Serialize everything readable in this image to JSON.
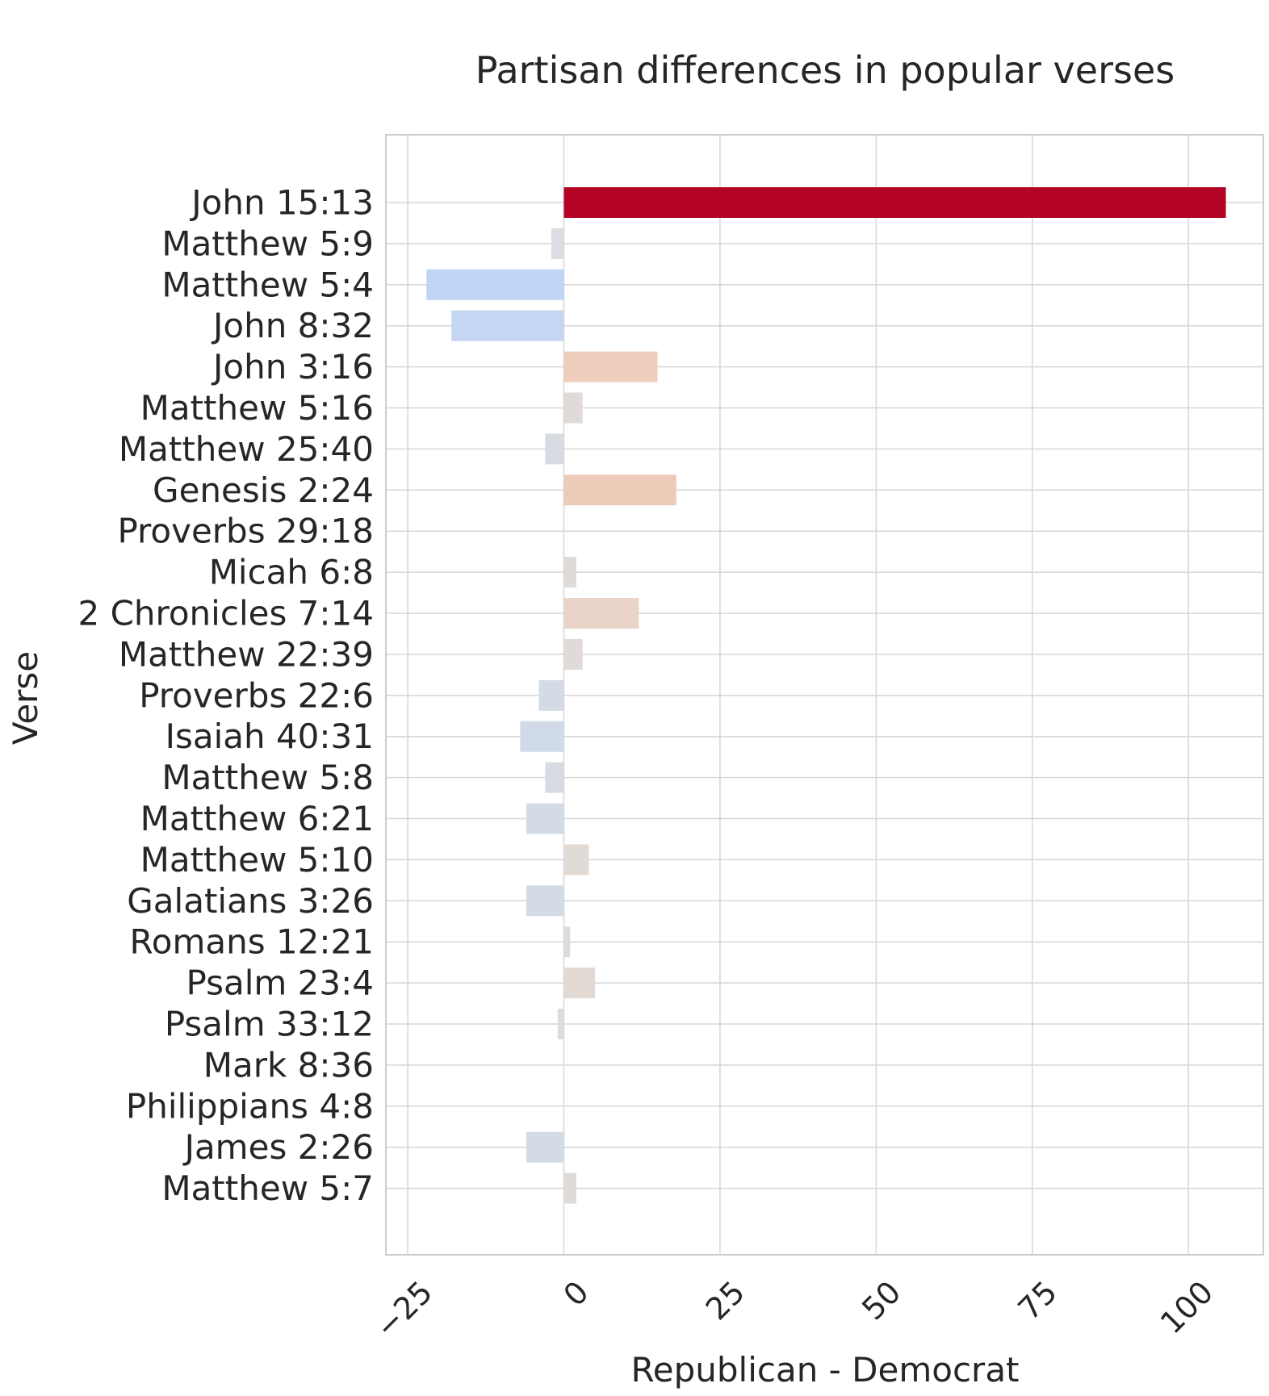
{
  "chart_data": {
    "type": "bar",
    "orientation": "horizontal",
    "title": "Partisan differences in popular verses",
    "xlabel": "Republican - Democrat",
    "ylabel": "Verse",
    "xlim": [
      -28.5,
      112
    ],
    "xticks": [
      -25,
      0,
      25,
      50,
      75,
      100
    ],
    "xtick_labels": [
      "−25",
      "0",
      "25",
      "50",
      "75",
      "100"
    ],
    "grid": true,
    "colormap": "coolwarm",
    "categories": [
      "John 15:13",
      "Matthew 5:9",
      "Matthew 5:4",
      "John 8:32",
      "John 3:16",
      "Matthew 5:16",
      "Matthew 25:40",
      "Genesis 2:24",
      "Proverbs 29:18",
      "Micah 6:8",
      "2 Chronicles 7:14",
      "Matthew 22:39",
      "Proverbs 22:6",
      "Isaiah 40:31",
      "Matthew 5:8",
      "Matthew 6:21",
      "Matthew 5:10",
      "Galatians 3:26",
      "Romans 12:21",
      "Psalm 23:4",
      "Psalm 33:12",
      "Mark 8:36",
      "Philippians 4:8",
      "James 2:26",
      "Matthew 5:7"
    ],
    "values": [
      106,
      -2,
      -22,
      -18,
      15,
      3,
      -3,
      18,
      0,
      2,
      12,
      3,
      -4,
      -7,
      -3,
      -6,
      4,
      -6,
      1,
      5,
      -1,
      0,
      0,
      -6,
      2
    ],
    "colors": [
      "#b40426",
      "#dcdde2",
      "#c0d4f5",
      "#c5d6f2",
      "#efcebd",
      "#e0dbd8",
      "#d8dce2",
      "#eecab8",
      "#dddddd",
      "#dfdbd9",
      "#ead4c8",
      "#e0dbd8",
      "#d5dbe5",
      "#d1dae9",
      "#d8dce2",
      "#d3dbe7",
      "#e2dad5",
      "#d3dbe7",
      "#dedcdb",
      "#e3d9d3",
      "#dcdddd",
      "#dddddd",
      "#dddddd",
      "#d3dbe7",
      "#dfdbd9"
    ]
  }
}
